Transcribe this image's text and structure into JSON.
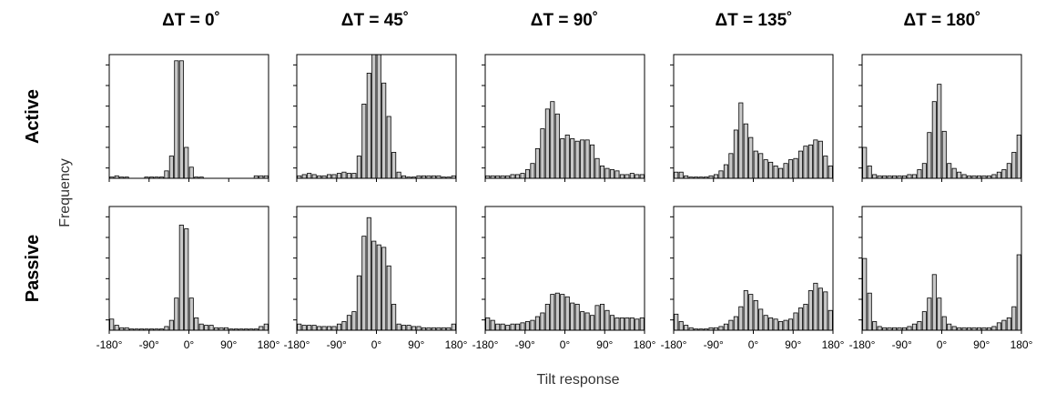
{
  "chart_data": {
    "type": "bar",
    "column_titles": [
      "ΔT = 0˚",
      "ΔT = 45˚",
      "ΔT = 90˚",
      "ΔT = 135˚",
      "ΔT = 180˚"
    ],
    "row_labels": [
      "Active",
      "Passive"
    ],
    "ylabel": "Frequency",
    "xlabel": "Tilt response",
    "x_tick_values": [
      -180,
      -90,
      0,
      90,
      180
    ],
    "x_tick_labels": [
      "-180°",
      "-90°",
      "0°",
      "90°",
      "180°"
    ],
    "bin_width": 11.25,
    "x_range": [
      -180,
      180
    ],
    "y_range": [
      0,
      1
    ],
    "y_ticks": 6,
    "panels": [
      {
        "row": "Active",
        "column": "ΔT = 0˚",
        "values": [
          0.01,
          0.02,
          0.01,
          0.01,
          0,
          0,
          0,
          0.01,
          0.01,
          0.01,
          0.01,
          0.06,
          0.18,
          0.95,
          0.95,
          0.25,
          0.09,
          0.01,
          0.01,
          0,
          0,
          0,
          0,
          0,
          0,
          0,
          0,
          0,
          0,
          0.02,
          0.02,
          0.02
        ]
      },
      {
        "row": "Active",
        "column": "ΔT = 45˚",
        "values": [
          0.02,
          0.03,
          0.04,
          0.03,
          0.02,
          0.02,
          0.03,
          0.03,
          0.04,
          0.05,
          0.04,
          0.04,
          0.18,
          0.6,
          0.85,
          1.0,
          1.0,
          0.77,
          0.5,
          0.21,
          0.05,
          0.02,
          0.01,
          0.01,
          0.02,
          0.02,
          0.02,
          0.02,
          0.02,
          0.01,
          0.01,
          0.02
        ]
      },
      {
        "row": "Active",
        "column": "ΔT = 90˚",
        "values": [
          0.02,
          0.02,
          0.02,
          0.02,
          0.02,
          0.03,
          0.03,
          0.04,
          0.07,
          0.12,
          0.24,
          0.4,
          0.56,
          0.62,
          0.52,
          0.32,
          0.35,
          0.32,
          0.3,
          0.31,
          0.31,
          0.27,
          0.16,
          0.1,
          0.08,
          0.07,
          0.06,
          0.03,
          0.03,
          0.04,
          0.03,
          0.03
        ]
      },
      {
        "row": "Active",
        "column": "ΔT = 135˚",
        "values": [
          0.05,
          0.05,
          0.02,
          0.01,
          0.01,
          0.01,
          0.01,
          0.02,
          0.03,
          0.06,
          0.11,
          0.2,
          0.39,
          0.61,
          0.44,
          0.33,
          0.22,
          0.2,
          0.15,
          0.13,
          0.1,
          0.08,
          0.12,
          0.15,
          0.16,
          0.22,
          0.26,
          0.27,
          0.31,
          0.3,
          0.18,
          0.1
        ]
      },
      {
        "row": "Active",
        "column": "ΔT = 180˚",
        "values": [
          0.25,
          0.1,
          0.03,
          0.02,
          0.02,
          0.02,
          0.02,
          0.02,
          0.02,
          0.03,
          0.03,
          0.07,
          0.12,
          0.37,
          0.62,
          0.76,
          0.38,
          0.12,
          0.08,
          0.05,
          0.03,
          0.02,
          0.02,
          0.02,
          0.02,
          0.02,
          0.03,
          0.05,
          0.07,
          0.12,
          0.21,
          0.35
        ]
      },
      {
        "row": "Passive",
        "column": "ΔT = 0˚",
        "values": [
          0.09,
          0.04,
          0.02,
          0.02,
          0.01,
          0.01,
          0.01,
          0.01,
          0.01,
          0.01,
          0.01,
          0.03,
          0.08,
          0.26,
          0.85,
          0.82,
          0.26,
          0.1,
          0.05,
          0.04,
          0.04,
          0.02,
          0.02,
          0.02,
          0.01,
          0.01,
          0.01,
          0.01,
          0.01,
          0.01,
          0.03,
          0.05
        ]
      },
      {
        "row": "Passive",
        "column": "ΔT = 45˚",
        "values": [
          0.05,
          0.04,
          0.04,
          0.04,
          0.03,
          0.03,
          0.03,
          0.03,
          0.05,
          0.07,
          0.12,
          0.15,
          0.44,
          0.76,
          0.91,
          0.72,
          0.69,
          0.67,
          0.52,
          0.21,
          0.05,
          0.04,
          0.04,
          0.03,
          0.03,
          0.02,
          0.02,
          0.02,
          0.02,
          0.02,
          0.02,
          0.05
        ]
      },
      {
        "row": "Passive",
        "column": "ΔT = 90˚",
        "values": [
          0.1,
          0.08,
          0.05,
          0.05,
          0.04,
          0.05,
          0.05,
          0.06,
          0.07,
          0.08,
          0.11,
          0.14,
          0.21,
          0.29,
          0.3,
          0.29,
          0.27,
          0.22,
          0.21,
          0.15,
          0.14,
          0.12,
          0.2,
          0.21,
          0.16,
          0.12,
          0.1,
          0.1,
          0.1,
          0.1,
          0.09,
          0.1
        ]
      },
      {
        "row": "Passive",
        "column": "ΔT = 135˚",
        "values": [
          0.13,
          0.07,
          0.04,
          0.02,
          0.01,
          0.01,
          0.01,
          0.02,
          0.02,
          0.03,
          0.05,
          0.08,
          0.11,
          0.19,
          0.32,
          0.29,
          0.24,
          0.17,
          0.12,
          0.1,
          0.09,
          0.07,
          0.08,
          0.09,
          0.14,
          0.18,
          0.21,
          0.32,
          0.38,
          0.34,
          0.31,
          0.16
        ]
      },
      {
        "row": "Passive",
        "column": "ΔT = 180˚",
        "values": [
          0.58,
          0.3,
          0.07,
          0.03,
          0.02,
          0.02,
          0.02,
          0.02,
          0.02,
          0.03,
          0.05,
          0.07,
          0.15,
          0.26,
          0.45,
          0.26,
          0.11,
          0.05,
          0.03,
          0.02,
          0.02,
          0.02,
          0.02,
          0.02,
          0.02,
          0.02,
          0.03,
          0.06,
          0.08,
          0.1,
          0.19,
          0.61
        ]
      }
    ]
  }
}
